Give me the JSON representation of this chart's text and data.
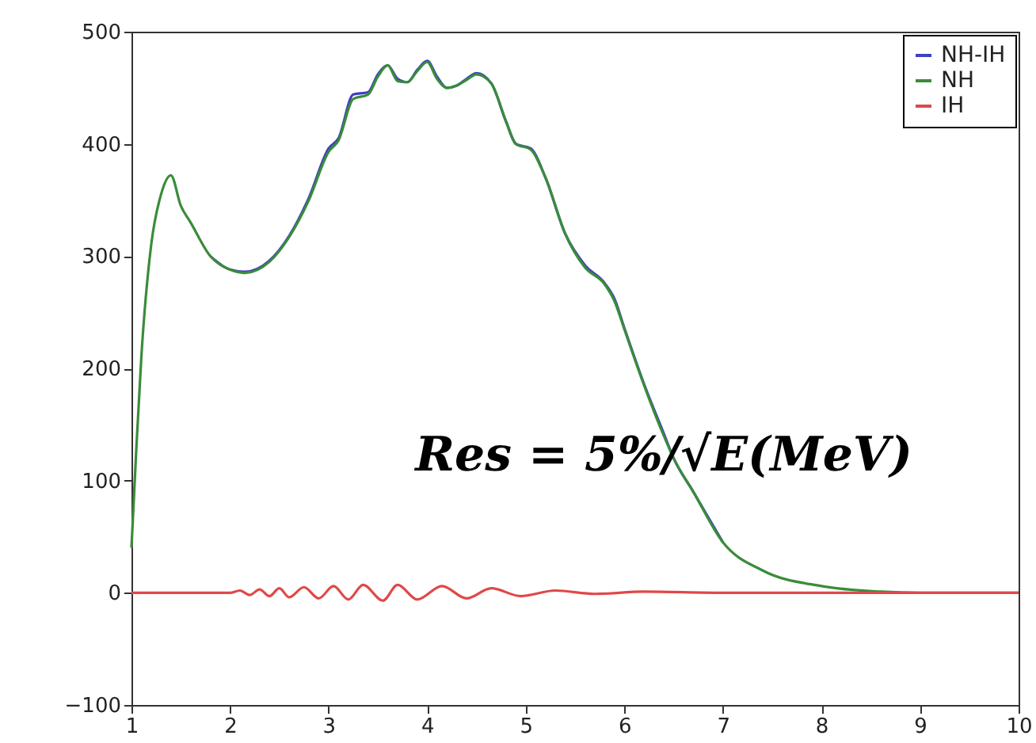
{
  "chart_data": {
    "type": "line",
    "x": [
      1,
      1.05,
      1.1,
      1.2,
      1.3,
      1.4,
      1.5,
      1.6,
      1.8,
      2.0,
      2.15,
      2.4,
      2.6,
      2.8,
      3.0,
      3.1,
      3.25,
      3.4,
      3.5,
      3.6,
      3.7,
      3.8,
      3.9,
      4.0,
      4.1,
      4.2,
      4.3,
      4.4,
      4.5,
      4.65,
      4.8,
      4.9,
      5.05,
      5.2,
      5.4,
      5.6,
      5.8,
      5.9,
      6.0,
      6.2,
      6.4,
      6.5,
      6.7,
      7.0,
      7.4,
      8.0,
      8.6,
      9.0,
      10
    ],
    "series": [
      {
        "name": "NH-IH",
        "color": "#3f3fbf",
        "values": [
          null,
          null,
          null,
          null,
          null,
          null,
          null,
          null,
          300,
          288,
          286,
          296,
          318,
          352,
          396,
          405,
          444,
          446,
          462,
          470,
          458,
          455,
          466,
          474,
          460,
          450,
          452,
          458,
          463,
          454,
          420,
          400,
          396,
          370,
          320,
          292,
          276,
          262,
          236,
          186,
          142,
          120,
          90,
          45,
          null,
          null,
          null,
          null,
          null
        ]
      },
      {
        "name": "NH",
        "color": "#3a8c3a",
        "values": [
          40,
          130,
          210,
          310,
          355,
          372,
          345,
          330,
          300,
          288,
          285,
          295,
          317,
          350,
          393,
          403,
          440,
          444,
          460,
          470,
          456,
          455,
          465,
          473,
          458,
          450,
          452,
          457,
          462,
          454,
          420,
          400,
          395,
          370,
          320,
          290,
          275,
          260,
          235,
          185,
          140,
          120,
          90,
          45,
          20,
          6,
          1,
          0,
          0
        ]
      },
      {
        "name": "IH",
        "color": "#e04848",
        "x": [
          1,
          2,
          2.1,
          2.2,
          2.3,
          2.4,
          2.5,
          2.6,
          2.75,
          2.9,
          3.05,
          3.2,
          3.35,
          3.55,
          3.7,
          3.9,
          4.15,
          4.4,
          4.65,
          4.95,
          5.3,
          5.7,
          6.2,
          7,
          10
        ],
        "values": [
          0,
          0,
          2,
          -2,
          3,
          -3,
          4,
          -4,
          5,
          -5,
          6,
          -6,
          7,
          -7,
          7,
          -6,
          6,
          -5,
          4,
          -3,
          2,
          -1,
          1,
          0,
          0
        ]
      }
    ],
    "annotations": [
      "Res = 5%/√E(MeV)"
    ],
    "xlim": [
      1,
      10
    ],
    "xticks": [
      1,
      2,
      3,
      4,
      5,
      6,
      7,
      8,
      9,
      10
    ],
    "ylim": [
      -100,
      500
    ],
    "yticks": [
      -100,
      0,
      100,
      200,
      300,
      400,
      500
    ],
    "legend": "top right",
    "grid": false
  }
}
